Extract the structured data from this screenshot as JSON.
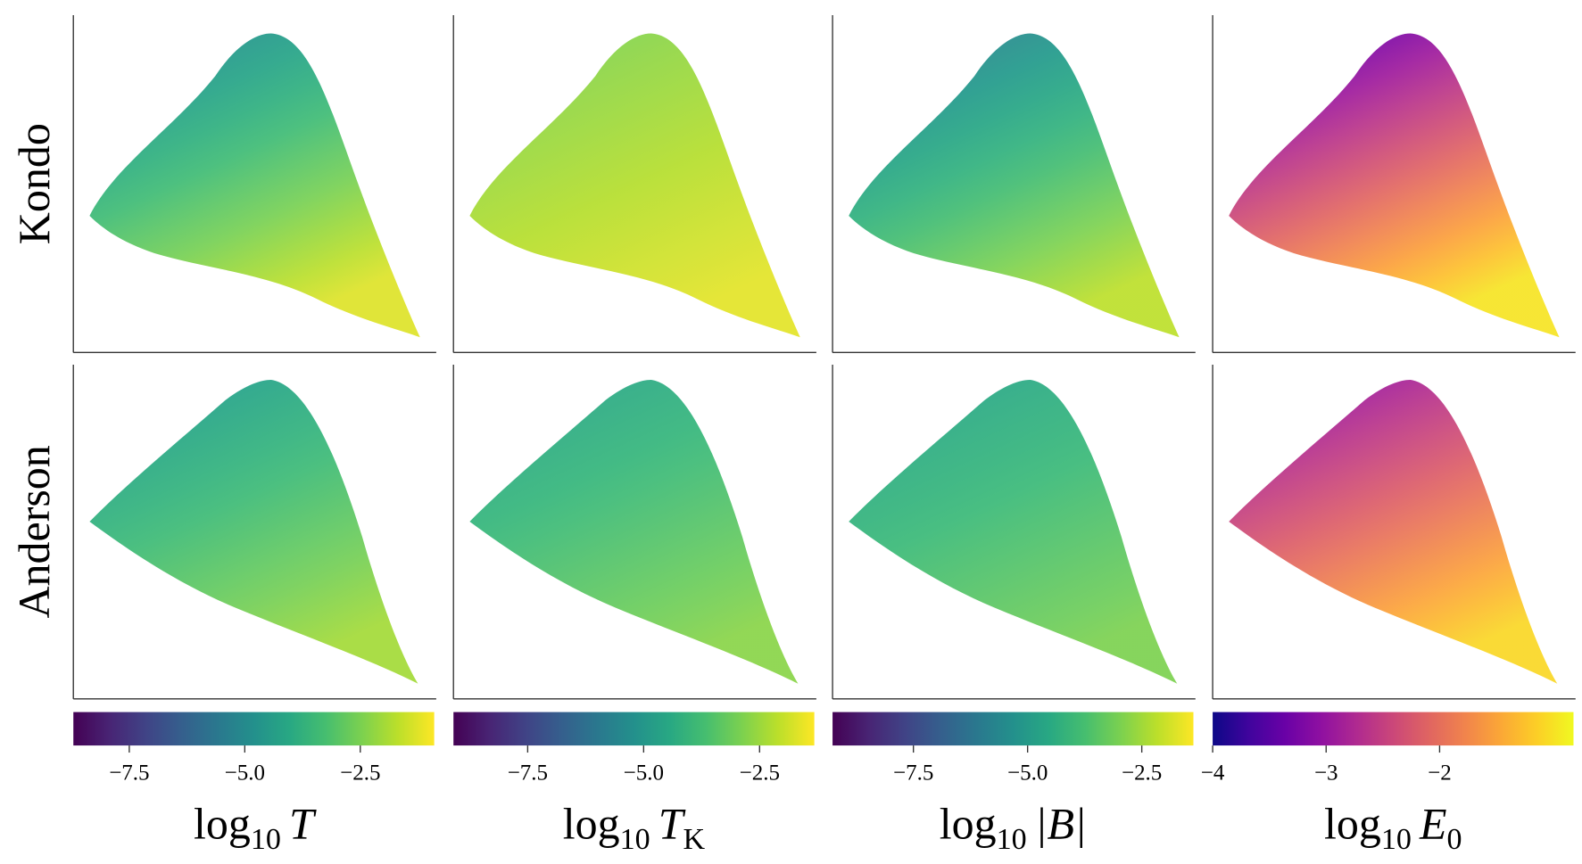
{
  "rows": [
    "Kondo",
    "Anderson"
  ],
  "chart_data": [
    {
      "type": "colorbar",
      "colormap": "viridis",
      "xlim": [
        -8.71,
        -0.9
      ],
      "xticks": [
        {
          "value": -7.5,
          "label": "−7.5"
        },
        {
          "value": -5.0,
          "label": "−5.0"
        },
        {
          "value": -2.5,
          "label": "−2.5"
        }
      ],
      "label": {
        "text": "log",
        "subscript": "10",
        "symbol": "T"
      }
    },
    {
      "type": "colorbar",
      "colormap": "viridis",
      "xlim": [
        -9.1,
        -1.32
      ],
      "xticks": [
        {
          "value": -7.5,
          "label": "−7.5"
        },
        {
          "value": -5.0,
          "label": "−5.0"
        },
        {
          "value": -2.5,
          "label": "−2.5"
        }
      ],
      "label": {
        "text": "log",
        "subscript": "10",
        "symbol": "T",
        "symbol_subscript": "K"
      }
    },
    {
      "type": "colorbar",
      "colormap": "viridis",
      "xlim": [
        -9.27,
        -1.37
      ],
      "xticks": [
        {
          "value": -7.5,
          "label": "−7.5"
        },
        {
          "value": -5.0,
          "label": "−5.0"
        },
        {
          "value": -2.5,
          "label": "−2.5"
        }
      ],
      "label": {
        "text": "log",
        "subscript": "10",
        "symbol": "|B|"
      }
    },
    {
      "type": "colorbar",
      "colormap": "plasma",
      "xlim": [
        -4,
        -0.82
      ],
      "xticks": [
        {
          "value": -4,
          "label": "−4"
        },
        {
          "value": -3,
          "label": "−3"
        },
        {
          "value": -2,
          "label": "−2"
        }
      ],
      "label": {
        "text": "log",
        "subscript": "10",
        "symbol": "E",
        "symbol_subscript": "0"
      }
    }
  ]
}
